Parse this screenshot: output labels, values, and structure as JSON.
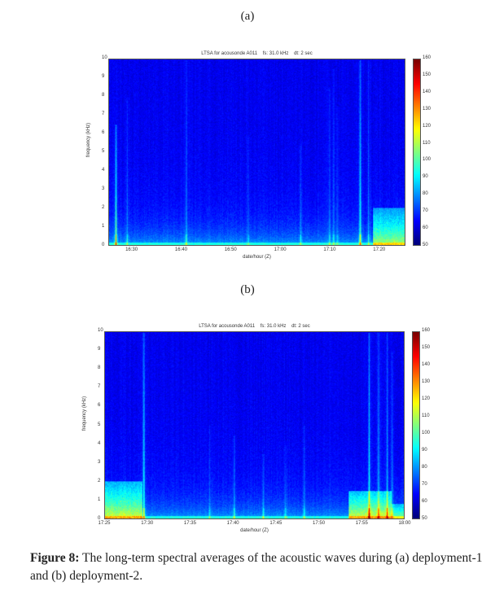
{
  "figure": {
    "caption_label": "Figure 8:",
    "caption_text": " The long-term spectral averages of the acoustic waves during (a) deployment-1 and (b) deployment-2."
  },
  "chart_data": [
    {
      "type": "heatmap",
      "panel_label": "(a)",
      "title": "LTSA for acousonde A011    fs: 31.0 kHz    dt: 2 sec",
      "xlabel": "date/hour (Z)",
      "ylabel": "frequency (kHz)",
      "x_range_minutes": [
        0,
        60
      ],
      "x_start": "16:25:20",
      "xticks": [
        {
          "label": "16:30",
          "t": 4.7
        },
        {
          "label": "16:40",
          "t": 14.7
        },
        {
          "label": "16:50",
          "t": 24.7
        },
        {
          "label": "17:00",
          "t": 34.7
        },
        {
          "label": "17:10",
          "t": 44.7
        },
        {
          "label": "17:20",
          "t": 54.7
        }
      ],
      "ylim": [
        0,
        10
      ],
      "yticks": [
        "0",
        "1",
        "2",
        "3",
        "4",
        "5",
        "6",
        "7",
        "8",
        "9",
        "10"
      ],
      "colorbar": {
        "range": [
          50,
          160
        ],
        "ticks": [
          "50",
          "60",
          "70",
          "80",
          "90",
          "100",
          "110",
          "120",
          "130",
          "140",
          "150",
          "160"
        ]
      },
      "background_level_db": 62,
      "events": [
        {
          "t": 1.3,
          "fmax_khz": 6.5,
          "level_db": 40
        },
        {
          "t": 3.6,
          "fmax_khz": 8,
          "level_db": 14
        },
        {
          "t": 15.6,
          "fmax_khz": 10,
          "level_db": 18
        },
        {
          "t": 28.2,
          "fmax_khz": 6,
          "level_db": 10
        },
        {
          "t": 38.8,
          "fmax_khz": 5.5,
          "level_db": 12
        },
        {
          "t": 44.7,
          "fmax_khz": 8.5,
          "level_db": 14
        },
        {
          "t": 45.5,
          "fmax_khz": 9.5,
          "level_db": 16
        },
        {
          "t": 46.3,
          "fmax_khz": 7.5,
          "level_db": 12
        },
        {
          "t": 50.9,
          "fmax_khz": 10,
          "level_db": 40
        },
        {
          "t": 52.6,
          "fmax_khz": 10,
          "level_db": 14
        }
      ],
      "bands": [
        {
          "t_from": 53.5,
          "t_to": 60,
          "fmax_khz": 2,
          "level_db": 30
        }
      ]
    },
    {
      "type": "heatmap",
      "panel_label": "(b)",
      "title": "LTSA for acousonde A011    fs: 31.0 kHz    dt: 2 sec",
      "xlabel": "date/hour (Z)",
      "ylabel": "frequency (kHz)",
      "x_range_minutes": [
        0,
        35
      ],
      "x_start": "17:25",
      "xticks": [
        {
          "label": "17:25",
          "t": 0
        },
        {
          "label": "17:30",
          "t": 5
        },
        {
          "label": "17:35",
          "t": 10
        },
        {
          "label": "17:40",
          "t": 15
        },
        {
          "label": "17:45",
          "t": 20
        },
        {
          "label": "17:50",
          "t": 25
        },
        {
          "label": "17:55",
          "t": 30
        },
        {
          "label": "18:00",
          "t": 35
        }
      ],
      "ylim": [
        0,
        10
      ],
      "yticks": [
        "0",
        "1",
        "2",
        "3",
        "4",
        "5",
        "6",
        "7",
        "8",
        "9",
        "10"
      ],
      "colorbar": {
        "range": [
          50,
          160
        ],
        "ticks": [
          "50",
          "60",
          "70",
          "80",
          "90",
          "100",
          "110",
          "120",
          "130",
          "140",
          "150",
          "160"
        ]
      },
      "background_level_db": 62,
      "events": [
        {
          "t": 4.5,
          "fmax_khz": 10,
          "level_db": 40
        },
        {
          "t": 12.2,
          "fmax_khz": 5,
          "level_db": 12
        },
        {
          "t": 15.1,
          "fmax_khz": 4.5,
          "level_db": 16
        },
        {
          "t": 18.5,
          "fmax_khz": 3.5,
          "level_db": 14
        },
        {
          "t": 21.1,
          "fmax_khz": 4,
          "level_db": 14
        },
        {
          "t": 23.3,
          "fmax_khz": 5,
          "level_db": 14
        },
        {
          "t": 30.9,
          "fmax_khz": 10,
          "level_db": 36
        },
        {
          "t": 32,
          "fmax_khz": 10,
          "level_db": 28
        },
        {
          "t": 33,
          "fmax_khz": 10,
          "level_db": 24
        },
        {
          "t": 33.6,
          "fmax_khz": 9,
          "level_db": 18
        }
      ],
      "bands": [
        {
          "t_from": 0,
          "t_to": 4.3,
          "fmax_khz": 2,
          "level_db": 35
        },
        {
          "t_from": 28.5,
          "t_to": 33.5,
          "fmax_khz": 1.5,
          "level_db": 35
        },
        {
          "t_from": 33.5,
          "t_to": 35,
          "fmax_khz": 0.8,
          "level_db": 25
        }
      ]
    }
  ]
}
